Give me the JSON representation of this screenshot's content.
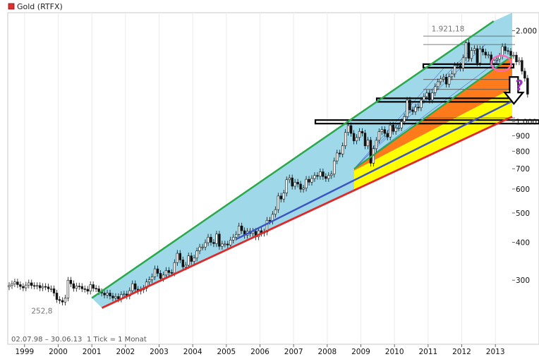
{
  "chart_data": {
    "type": "candlestick",
    "title": "Gold (RTFX)",
    "legend_color": "#e03030",
    "y_scale": "log",
    "ylim": [
      220,
      2150
    ],
    "xlim": [
      1998.5,
      2013.5
    ],
    "y_ticks": [
      {
        "value": 2000,
        "label": "2.000"
      },
      {
        "value": 1000,
        "label": "1.000"
      },
      {
        "value": 900,
        "label": "900"
      },
      {
        "value": 800,
        "label": "800"
      },
      {
        "value": 700,
        "label": "700"
      },
      {
        "value": 600,
        "label": "600"
      },
      {
        "value": 500,
        "label": "500"
      },
      {
        "value": 400,
        "label": "400"
      },
      {
        "value": 300,
        "label": "300"
      }
    ],
    "x_ticks": [
      "1999",
      "2000",
      "2001",
      "2002",
      "2003",
      "2004",
      "2005",
      "2006",
      "2007",
      "2008",
      "2009",
      "2010",
      "2011",
      "2012",
      "2013"
    ],
    "annotations": {
      "high_label": "1.921,18",
      "low_label": "252,8",
      "question_mark": "?"
    },
    "footer": {
      "date_range": "02.07.98 – 30.06.13",
      "tick_info": "1 Tick = 1 Monat"
    },
    "colors": {
      "channel_fill": "#9fd9e9",
      "upper_line": "#2aa84a",
      "mid_line": "#3d55c4",
      "lower_line": "#e02828",
      "orange_band": "#ff7a1a",
      "yellow_band": "#ffff00",
      "up_candle": "#ffffff",
      "down_candle": "#111111",
      "marker_circle": "#ff66b3",
      "question": "#a030c0"
    },
    "channel_lines": {
      "upper": [
        [
          2001.0,
          262
        ],
        [
          2012.95,
          2150
        ]
      ],
      "middle": [
        [
          2005.3,
          410
        ],
        [
          2013.5,
          1170
        ]
      ],
      "lower": [
        [
          2001.3,
          243
        ],
        [
          2013.5,
          1040
        ]
      ],
      "orange_top": [
        [
          2008.8,
          700
        ],
        [
          2013.5,
          1650
        ]
      ],
      "yellow_top": [
        [
          2008.8,
          690
        ],
        [
          2013.5,
          1290
        ]
      ]
    },
    "horizontal_levels": [
      1920,
      1800,
      1550,
      1530,
      1380,
      1280,
      1180,
      1030,
      1000
    ],
    "monthly_close": [
      288,
      292,
      296,
      290,
      286,
      283,
      289,
      294,
      288,
      287,
      288,
      283,
      286,
      285,
      281,
      281,
      272,
      259,
      257,
      254,
      262,
      300,
      292,
      282,
      287,
      286,
      281,
      280,
      276,
      290,
      282,
      281,
      275,
      272,
      268,
      272,
      266,
      262,
      265,
      260,
      269,
      270,
      266,
      277,
      292,
      280,
      276,
      279,
      282,
      296,
      301,
      308,
      327,
      316,
      304,
      312,
      323,
      318,
      317,
      343,
      368,
      350,
      332,
      336,
      361,
      346,
      355,
      375,
      386,
      386,
      399,
      416,
      400,
      396,
      426,
      388,
      395,
      395,
      392,
      407,
      416,
      425,
      453,
      437,
      422,
      435,
      428,
      435,
      417,
      437,
      429,
      433,
      473,
      470,
      495,
      513,
      569,
      556,
      582,
      644,
      653,
      613,
      632,
      623,
      599,
      604,
      646,
      632,
      650,
      665,
      661,
      684,
      660,
      650,
      665,
      672,
      743,
      789,
      783,
      834,
      923,
      972,
      916,
      865,
      888,
      930,
      918,
      833,
      870,
      730,
      815,
      869,
      928,
      943,
      916,
      891,
      976,
      930,
      954,
      955,
      1001,
      1040,
      1180,
      1095,
      1081,
      1118,
      1113,
      1180,
      1212,
      1245,
      1180,
      1248,
      1307,
      1356,
      1386,
      1405,
      1332,
      1409,
      1439,
      1535,
      1536,
      1505,
      1628,
      1825,
      1620,
      1720,
      1745,
      1565,
      1740,
      1700,
      1662,
      1664,
      1560,
      1597,
      1610,
      1648,
      1773,
      1718,
      1710,
      1657,
      1660,
      1578,
      1595,
      1470,
      1393,
      1234
    ]
  }
}
